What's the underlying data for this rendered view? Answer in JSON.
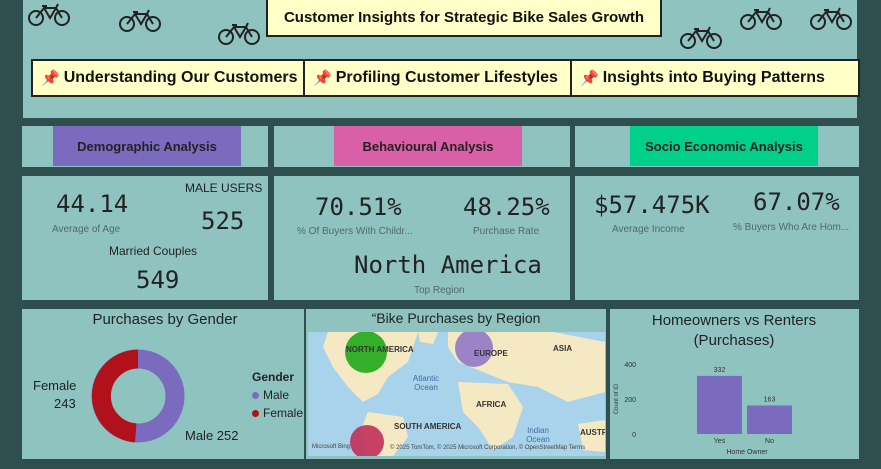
{
  "header": {
    "title": "Customer Insights for Strategic Bike Sales Growth",
    "tabs": [
      {
        "label": "Understanding Our Customers"
      },
      {
        "label": "Profiling Customer Lifestyles"
      },
      {
        "label": "Insights into Buying Patterns"
      }
    ]
  },
  "sections": {
    "demographic": {
      "label": "Demographic Analysis",
      "color": "#7b6bbf"
    },
    "behavioural": {
      "label": "Behavioural Analysis",
      "color": "#d95fa6"
    },
    "socio": {
      "label": "Socio Economic Analysis",
      "color": "#00d08a"
    }
  },
  "demographic": {
    "avg_age": "44.14",
    "avg_age_label": "Average of Age",
    "male_users_label": "MALE USERS",
    "male_users": "525",
    "married_label": "Married Couples",
    "married": "549"
  },
  "behavioural": {
    "children_pct": "70.51%",
    "children_label": "% Of Buyers With Childr...",
    "purchase_rate": "48.25%",
    "purchase_rate_label": "Purchase Rate",
    "top_region": "North America",
    "top_region_label": "Top Region"
  },
  "socio": {
    "avg_income": "$57.475K",
    "avg_income_label": "Average Income",
    "home_pct": "67.07%",
    "home_label": "% Buyers Who Are Hom..."
  },
  "gender_chart": {
    "title": "Purchases by Gender",
    "legend_title": "Gender",
    "legend": [
      "Male",
      "Female"
    ],
    "female_label": "Female",
    "female_value": "243",
    "male_label": "Male 252",
    "colors": {
      "male": "#7b6bbf",
      "female": "#b0111a"
    }
  },
  "map": {
    "title": "“Bike Purchases by Region",
    "labels": {
      "north_america": "NORTH AMERICA",
      "europe": "EUROPE",
      "asia": "ASIA",
      "africa": "AFRICA",
      "south_america": "SOUTH AMERICA",
      "australia": "AUSTRA",
      "atlantic": "Atlantic Ocean",
      "indian": "Indian Ocean"
    },
    "attribution": "© 2025 TomTom, © 2025 Microsoft Corporation, © OpenStreetMap Terms",
    "brand": "Microsoft Bing"
  },
  "chart_data": {
    "type": "bar",
    "title": "Homeowners vs Renters (Purchases)",
    "categories": [
      "Yes",
      "No"
    ],
    "values": [
      332,
      163
    ],
    "xlabel": "Home Owner",
    "ylabel": "Count of ID",
    "yticks": [
      0,
      200,
      400
    ],
    "ylim": [
      0,
      400
    ],
    "color": "#7b6bbf"
  }
}
